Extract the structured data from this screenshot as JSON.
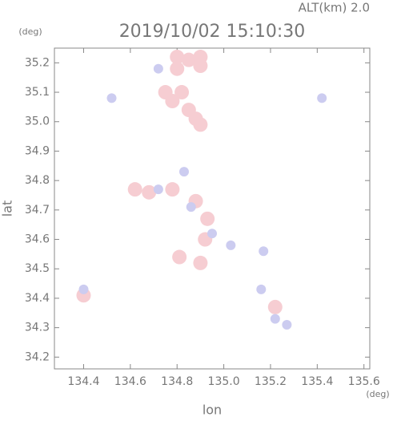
{
  "chart_data": {
    "type": "scatter",
    "title": "2019/10/02 15:10:30",
    "subtitle": "ALT(km) 2.0",
    "x_label": "lon",
    "y_label": "lat",
    "x_unit": "(deg)",
    "y_unit": "(deg)",
    "xlim": [
      134.275,
      135.625
    ],
    "ylim": [
      34.16,
      35.25
    ],
    "xticks": [
      134.4,
      134.6,
      134.8,
      {
        "value": 135,
        "label": "135.0"
      },
      135.2,
      135.4,
      135.6
    ],
    "yticks": [
      34.2,
      34.3,
      34.4,
      34.5,
      34.6,
      34.7,
      34.8,
      34.9,
      {
        "value": 35,
        "label": "35.0"
      },
      35.1,
      35.2
    ],
    "series": [
      {
        "color": "#f6cdd2",
        "x": [
          134.8,
          134.85,
          134.9,
          134.9,
          134.8,
          134.75,
          134.78,
          134.82,
          134.85,
          134.88,
          134.9,
          134.62,
          134.68,
          134.78,
          134.88,
          134.93,
          134.92,
          134.9,
          134.81,
          134.4,
          135.22
        ],
        "y": [
          35.22,
          35.21,
          35.22,
          35.19,
          35.18,
          35.1,
          35.07,
          35.1,
          35.04,
          35.01,
          34.99,
          34.77,
          34.76,
          34.77,
          34.73,
          34.67,
          34.6,
          34.52,
          34.54,
          34.41,
          34.37
        ]
      },
      {
        "color": "#ccccf0",
        "x": [
          134.72,
          134.52,
          135.42,
          134.83,
          134.95,
          135.03,
          135.17,
          135.16,
          135.22,
          135.27,
          134.4,
          134.72,
          134.86
        ],
        "y": [
          35.18,
          35.08,
          35.08,
          34.83,
          34.62,
          34.58,
          34.56,
          34.43,
          34.33,
          34.31,
          34.43,
          34.77,
          34.71
        ]
      }
    ]
  }
}
